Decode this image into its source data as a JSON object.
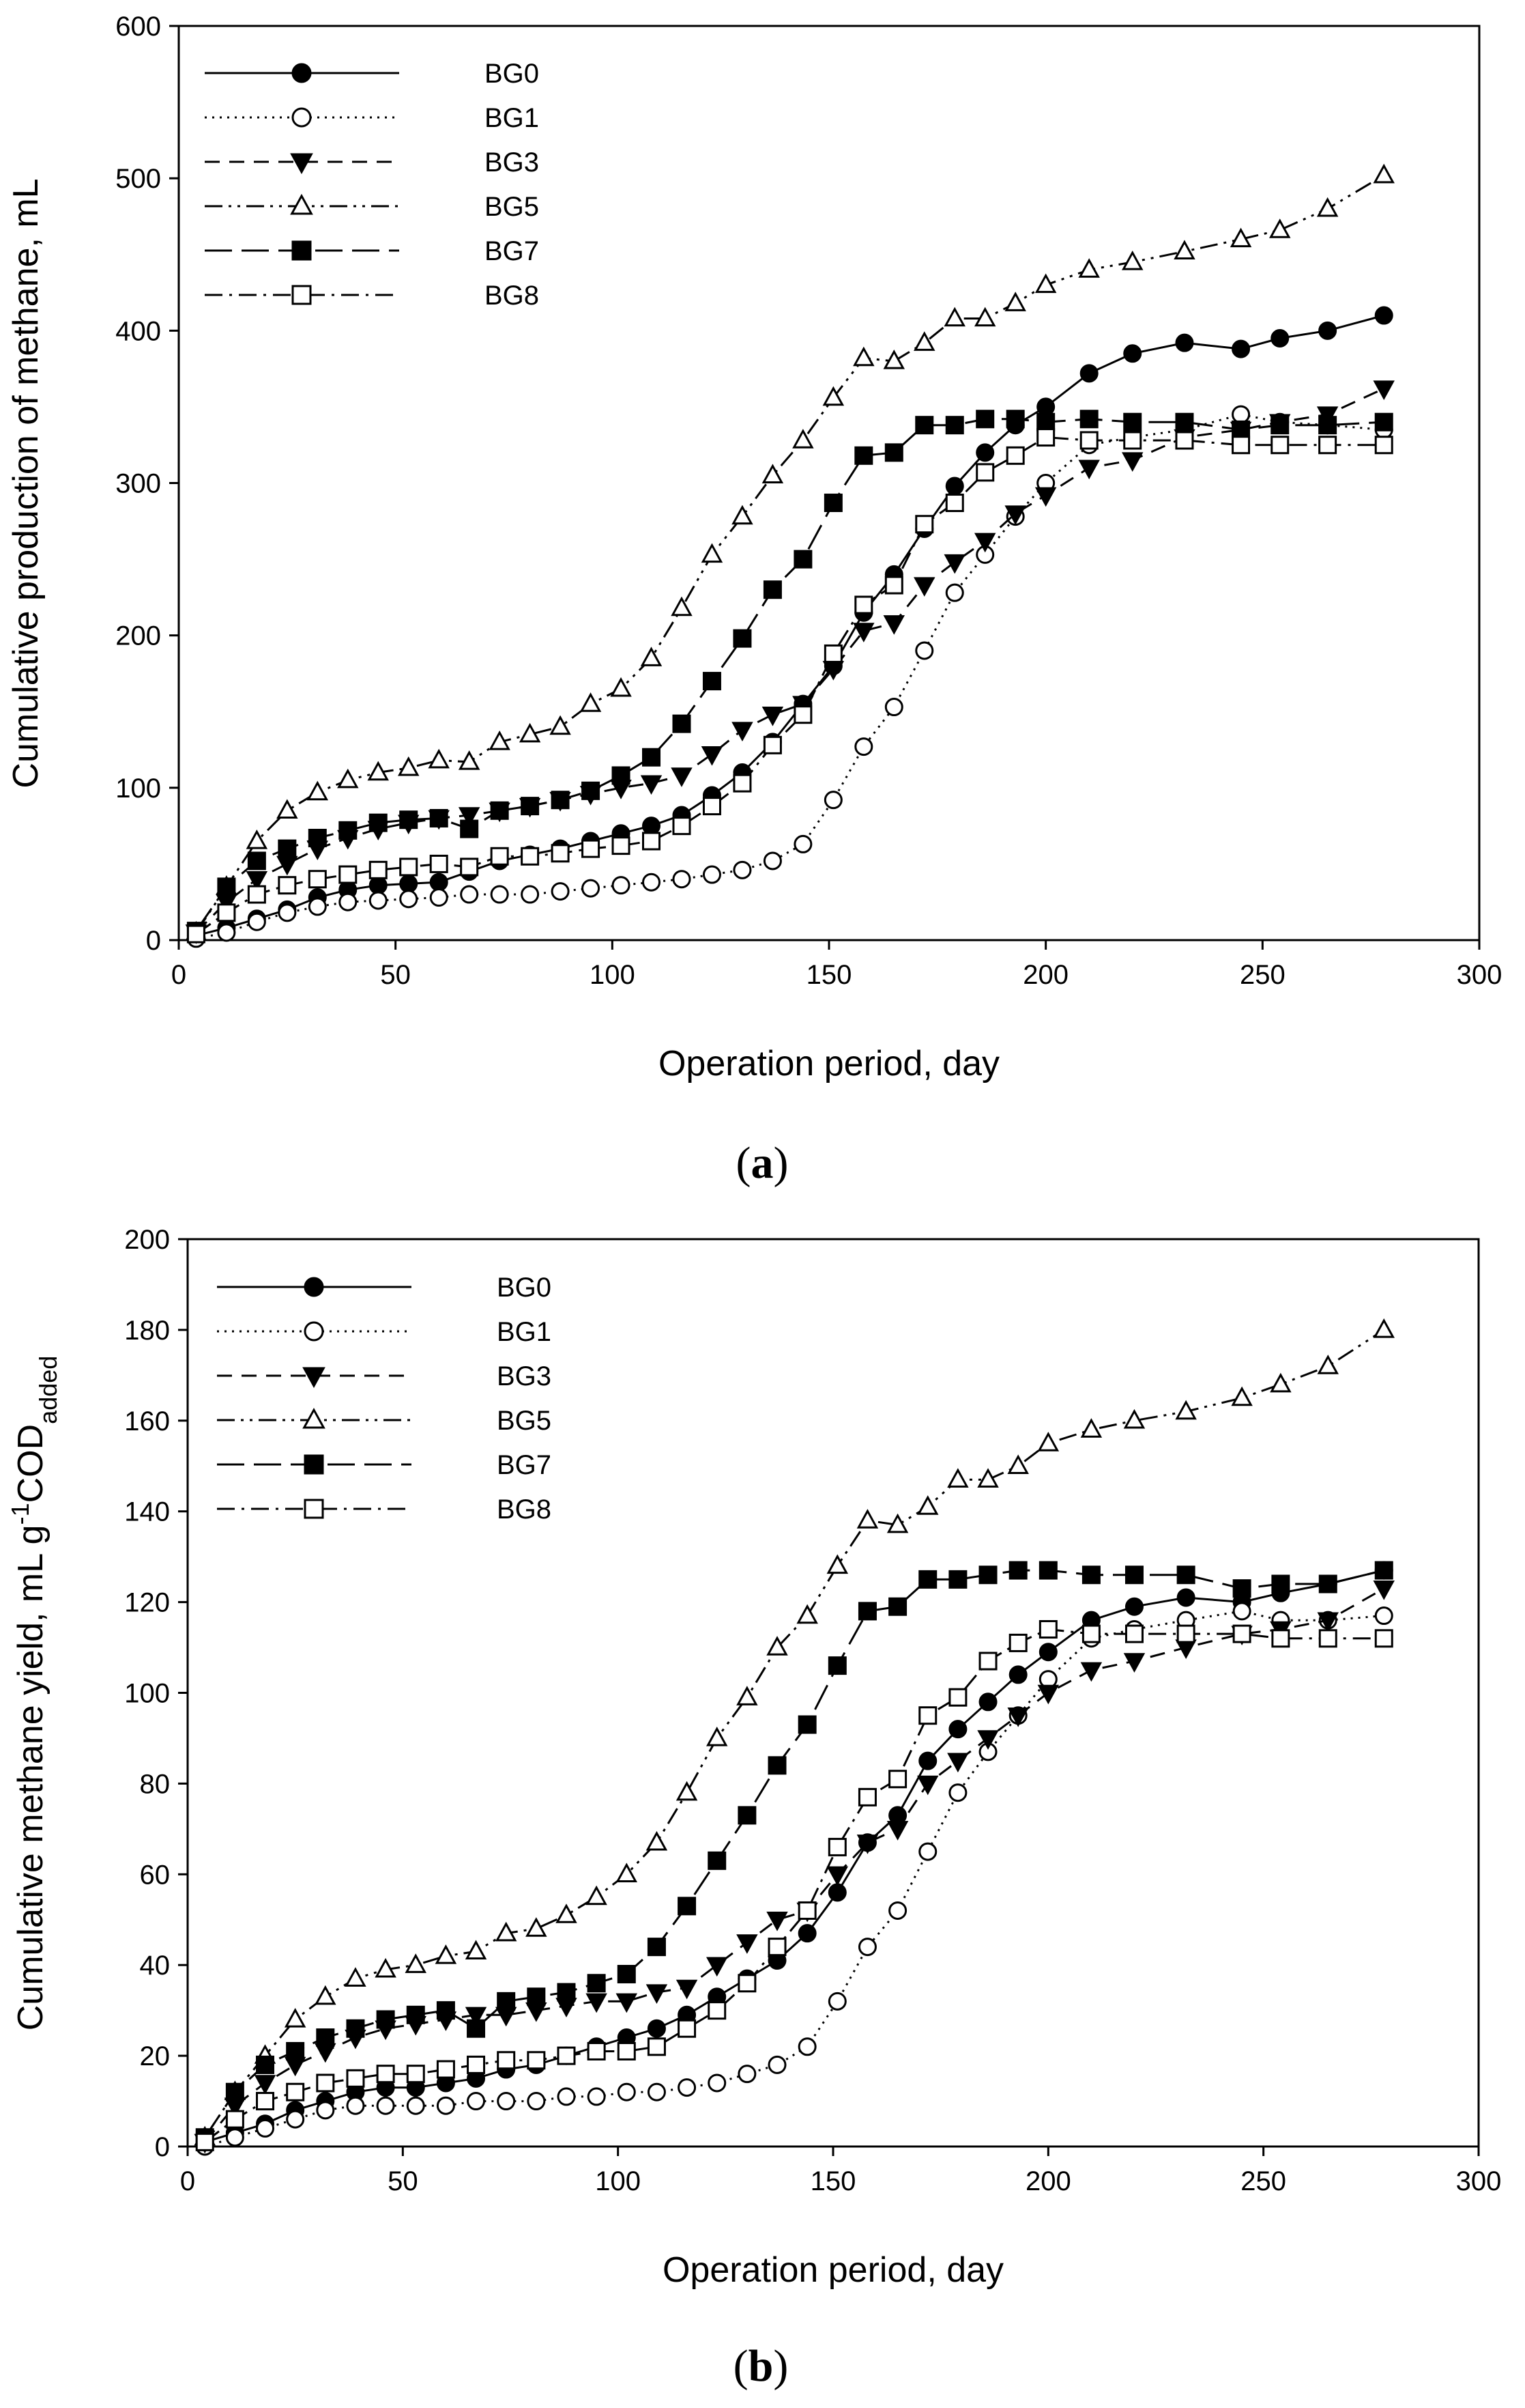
{
  "figure_labels": {
    "a": "a",
    "b": "b"
  },
  "chart_data": [
    {
      "type": "line",
      "panel": "a",
      "title": "",
      "xlabel": "Operation period, day",
      "ylabel": "Cumulative production of methane, mL",
      "xlim": [
        0,
        300
      ],
      "ylim": [
        0,
        600
      ],
      "xticks": [
        0,
        50,
        100,
        150,
        200,
        250,
        300
      ],
      "yticks": [
        0,
        100,
        200,
        300,
        400,
        500,
        600
      ],
      "grid": false,
      "legend_position": "top-left",
      "series": [
        {
          "name": "BG0",
          "marker": "circle-filled",
          "dash": "solid",
          "x": [
            4,
            11,
            18,
            25,
            32,
            39,
            46,
            53,
            60,
            67,
            74,
            81,
            88,
            95,
            102,
            109,
            116,
            123,
            130,
            137,
            144,
            151,
            158,
            165,
            172,
            179,
            186,
            193,
            200,
            210,
            220,
            232,
            245,
            254,
            265,
            278
          ],
          "y": [
            3,
            8,
            14,
            20,
            28,
            33,
            36,
            37,
            38,
            45,
            52,
            56,
            60,
            65,
            70,
            75,
            82,
            95,
            110,
            130,
            155,
            180,
            215,
            240,
            270,
            298,
            320,
            338,
            350,
            372,
            385,
            392,
            388,
            395,
            400,
            410
          ]
        },
        {
          "name": "BG1",
          "marker": "circle-open",
          "dash": "dotted",
          "x": [
            4,
            11,
            18,
            25,
            32,
            39,
            46,
            53,
            60,
            67,
            74,
            81,
            88,
            95,
            102,
            109,
            116,
            123,
            130,
            137,
            144,
            151,
            158,
            165,
            172,
            179,
            186,
            193,
            200,
            210,
            220,
            232,
            245,
            254,
            265,
            278
          ],
          "y": [
            1,
            5,
            12,
            18,
            22,
            25,
            26,
            27,
            28,
            30,
            30,
            30,
            32,
            34,
            36,
            38,
            40,
            43,
            46,
            52,
            63,
            92,
            127,
            153,
            190,
            228,
            253,
            278,
            300,
            325,
            330,
            335,
            345,
            340,
            338,
            335
          ]
        },
        {
          "name": "BG3",
          "marker": "triangle-down-filled",
          "dash": "dashed",
          "x": [
            4,
            11,
            18,
            25,
            32,
            39,
            46,
            53,
            60,
            67,
            74,
            81,
            88,
            95,
            102,
            109,
            116,
            123,
            130,
            137,
            144,
            151,
            158,
            165,
            172,
            179,
            186,
            193,
            200,
            210,
            220,
            232,
            245,
            254,
            265,
            278
          ],
          "y": [
            5,
            25,
            40,
            50,
            60,
            67,
            73,
            77,
            80,
            82,
            85,
            88,
            92,
            96,
            100,
            103,
            108,
            122,
            138,
            148,
            155,
            178,
            203,
            208,
            233,
            248,
            262,
            280,
            292,
            310,
            315,
            330,
            335,
            340,
            345,
            362
          ]
        },
        {
          "name": "BG5",
          "marker": "triangle-up-open",
          "dash": "dash-dot-dot",
          "x": [
            4,
            11,
            18,
            25,
            32,
            39,
            46,
            53,
            60,
            67,
            74,
            81,
            88,
            95,
            102,
            109,
            116,
            123,
            130,
            137,
            144,
            151,
            158,
            165,
            172,
            179,
            186,
            193,
            200,
            210,
            220,
            232,
            245,
            254,
            265,
            278
          ],
          "y": [
            5,
            35,
            65,
            85,
            97,
            105,
            110,
            113,
            118,
            117,
            130,
            135,
            140,
            155,
            165,
            185,
            218,
            253,
            278,
            305,
            328,
            356,
            382,
            380,
            392,
            408,
            408,
            418,
            430,
            440,
            445,
            452,
            460,
            466,
            480,
            502
          ]
        },
        {
          "name": "BG7",
          "marker": "square-filled",
          "dash": "long-dash",
          "x": [
            4,
            11,
            18,
            25,
            32,
            39,
            46,
            53,
            60,
            67,
            74,
            81,
            88,
            95,
            102,
            109,
            116,
            123,
            130,
            137,
            144,
            151,
            158,
            165,
            172,
            179,
            186,
            193,
            200,
            210,
            220,
            232,
            245,
            254,
            265,
            278
          ],
          "y": [
            6,
            35,
            52,
            60,
            67,
            72,
            77,
            79,
            80,
            73,
            85,
            88,
            92,
            98,
            108,
            120,
            142,
            170,
            198,
            230,
            250,
            287,
            318,
            320,
            338,
            338,
            342,
            342,
            340,
            342,
            340,
            340,
            335,
            338,
            338,
            340
          ]
        },
        {
          "name": "BG8",
          "marker": "square-open",
          "dash": "dash-dot",
          "x": [
            4,
            11,
            18,
            25,
            32,
            39,
            46,
            53,
            60,
            67,
            74,
            81,
            88,
            95,
            102,
            109,
            116,
            123,
            130,
            137,
            144,
            151,
            158,
            165,
            172,
            179,
            186,
            193,
            200,
            210,
            220,
            232,
            245,
            254,
            265,
            278
          ],
          "y": [
            4,
            18,
            30,
            36,
            40,
            43,
            46,
            48,
            50,
            48,
            55,
            55,
            57,
            60,
            62,
            65,
            75,
            88,
            103,
            128,
            148,
            188,
            220,
            233,
            273,
            287,
            307,
            318,
            330,
            328,
            328,
            328,
            325,
            325,
            325,
            325
          ]
        }
      ]
    },
    {
      "type": "line",
      "panel": "b",
      "title": "",
      "xlabel": "Operation period, day",
      "ylabel": "Cumulative methane yield, mL g",
      "ylabel_superscript": "-1",
      "ylabel_rest": "COD",
      "ylabel_subscript": "added",
      "xlim": [
        0,
        300
      ],
      "ylim": [
        0,
        200
      ],
      "xticks": [
        0,
        50,
        100,
        150,
        200,
        250,
        300
      ],
      "yticks": [
        0,
        20,
        40,
        60,
        80,
        100,
        120,
        140,
        160,
        180,
        200
      ],
      "grid": false,
      "legend_position": "top-left",
      "series": [
        {
          "name": "BG0",
          "marker": "circle-filled",
          "dash": "solid",
          "x": [
            4,
            11,
            18,
            25,
            32,
            39,
            46,
            53,
            60,
            67,
            74,
            81,
            88,
            95,
            102,
            109,
            116,
            123,
            130,
            137,
            144,
            151,
            158,
            165,
            172,
            179,
            186,
            193,
            200,
            210,
            220,
            232,
            245,
            254,
            265,
            278
          ],
          "y": [
            1,
            3,
            5,
            8,
            10,
            12,
            13,
            13,
            14,
            15,
            17,
            18,
            20,
            22,
            24,
            26,
            29,
            33,
            37,
            41,
            47,
            56,
            67,
            73,
            85,
            92,
            98,
            104,
            109,
            116,
            119,
            121,
            120,
            122,
            124,
            127
          ]
        },
        {
          "name": "BG1",
          "marker": "circle-open",
          "dash": "dotted",
          "x": [
            4,
            11,
            18,
            25,
            32,
            39,
            46,
            53,
            60,
            67,
            74,
            81,
            88,
            95,
            102,
            109,
            116,
            123,
            130,
            137,
            144,
            151,
            158,
            165,
            172,
            179,
            186,
            193,
            200,
            210,
            220,
            232,
            245,
            254,
            265,
            278
          ],
          "y": [
            0,
            2,
            4,
            6,
            8,
            9,
            9,
            9,
            9,
            10,
            10,
            10,
            11,
            11,
            12,
            12,
            13,
            14,
            16,
            18,
            22,
            32,
            44,
            52,
            65,
            78,
            87,
            95,
            103,
            112,
            114,
            116,
            118,
            116,
            116,
            117
          ]
        },
        {
          "name": "BG3",
          "marker": "triangle-down-filled",
          "dash": "dashed",
          "x": [
            4,
            11,
            18,
            25,
            32,
            39,
            46,
            53,
            60,
            67,
            74,
            81,
            88,
            95,
            102,
            109,
            116,
            123,
            130,
            137,
            144,
            151,
            158,
            165,
            172,
            179,
            186,
            193,
            200,
            210,
            220,
            232,
            245,
            254,
            265,
            278
          ],
          "y": [
            1,
            9,
            14,
            18,
            21,
            24,
            26,
            27,
            28,
            29,
            29,
            30,
            31,
            32,
            32,
            34,
            35,
            40,
            45,
            50,
            52,
            60,
            67,
            70,
            80,
            85,
            90,
            95,
            100,
            105,
            107,
            110,
            113,
            114,
            116,
            123
          ]
        },
        {
          "name": "BG5",
          "marker": "triangle-up-open",
          "dash": "dash-dot-dot",
          "x": [
            4,
            11,
            18,
            25,
            32,
            39,
            46,
            53,
            60,
            67,
            74,
            81,
            88,
            95,
            102,
            109,
            116,
            123,
            130,
            137,
            144,
            151,
            158,
            165,
            172,
            179,
            186,
            193,
            200,
            210,
            220,
            232,
            245,
            254,
            265,
            278
          ],
          "y": [
            2,
            12,
            20,
            28,
            33,
            37,
            39,
            40,
            42,
            43,
            47,
            48,
            51,
            55,
            60,
            67,
            78,
            90,
            99,
            110,
            117,
            128,
            138,
            137,
            141,
            147,
            147,
            150,
            155,
            158,
            160,
            162,
            165,
            168,
            172,
            180
          ]
        },
        {
          "name": "BG7",
          "marker": "square-filled",
          "dash": "long-dash",
          "x": [
            4,
            11,
            18,
            25,
            32,
            39,
            46,
            53,
            60,
            67,
            74,
            81,
            88,
            95,
            102,
            109,
            116,
            123,
            130,
            137,
            144,
            151,
            158,
            165,
            172,
            179,
            186,
            193,
            200,
            210,
            220,
            232,
            245,
            254,
            265,
            278
          ],
          "y": [
            2,
            12,
            18,
            21,
            24,
            26,
            28,
            29,
            30,
            26,
            32,
            33,
            34,
            36,
            38,
            44,
            53,
            63,
            73,
            84,
            93,
            106,
            118,
            119,
            125,
            125,
            126,
            127,
            127,
            126,
            126,
            126,
            123,
            124,
            124,
            127
          ]
        },
        {
          "name": "BG8",
          "marker": "square-open",
          "dash": "dash-dot",
          "x": [
            4,
            11,
            18,
            25,
            32,
            39,
            46,
            53,
            60,
            67,
            74,
            81,
            88,
            95,
            102,
            109,
            116,
            123,
            130,
            137,
            144,
            151,
            158,
            165,
            172,
            179,
            186,
            193,
            200,
            210,
            220,
            232,
            245,
            254,
            265,
            278
          ],
          "y": [
            1,
            6,
            10,
            12,
            14,
            15,
            16,
            16,
            17,
            18,
            19,
            19,
            20,
            21,
            21,
            22,
            26,
            30,
            36,
            44,
            52,
            66,
            77,
            81,
            95,
            99,
            107,
            111,
            114,
            113,
            113,
            113,
            113,
            112,
            112,
            112
          ]
        }
      ]
    }
  ]
}
